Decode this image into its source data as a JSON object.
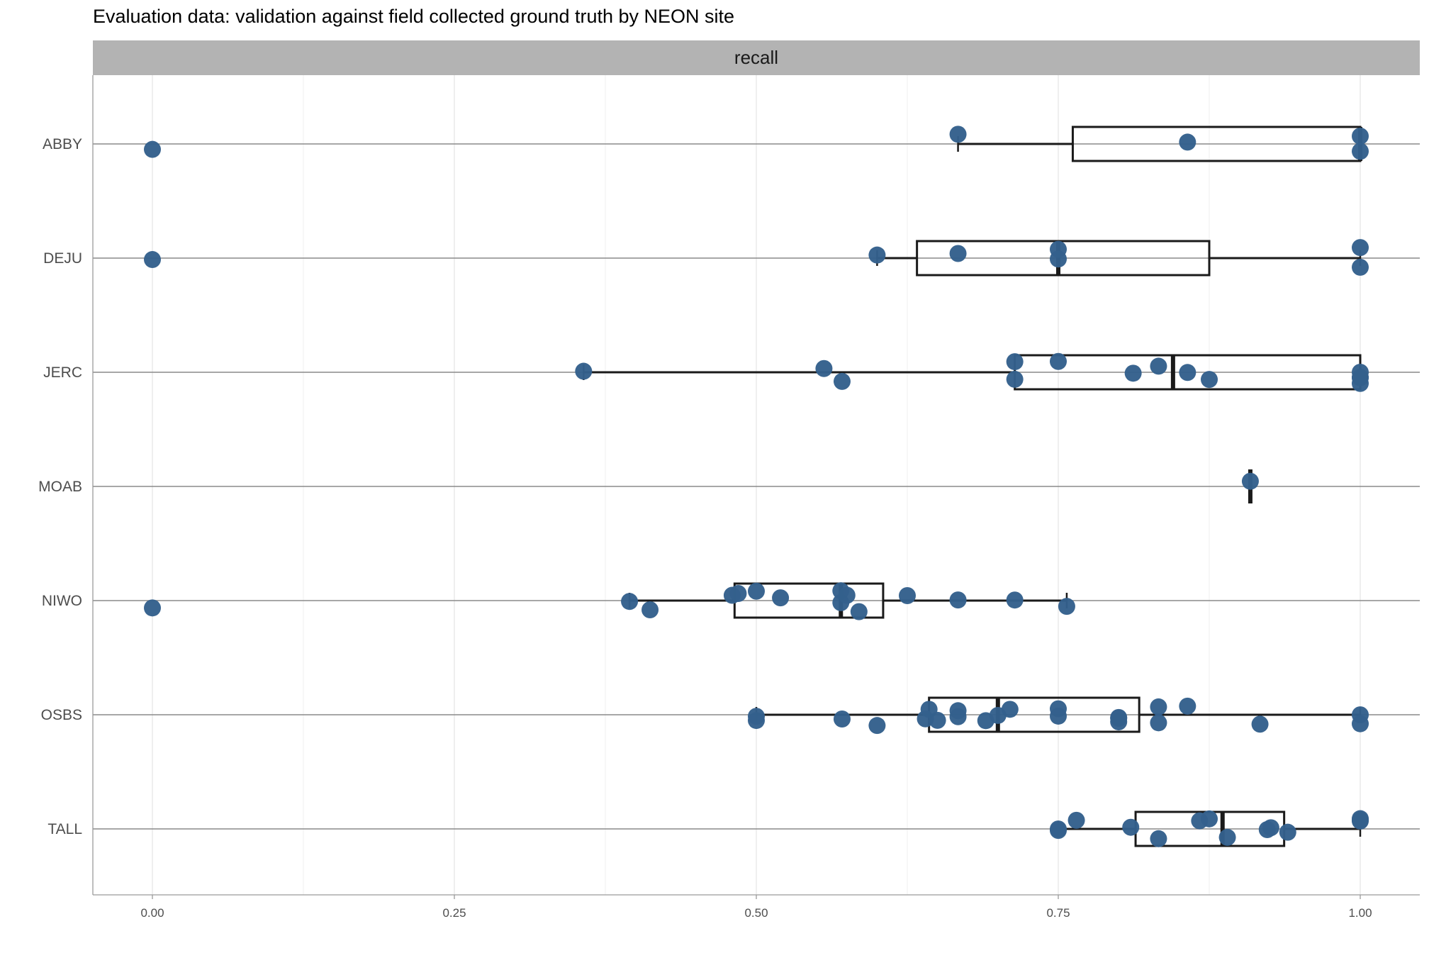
{
  "title": "Evaluation data: validation against field collected ground truth by NEON site",
  "chart_data": {
    "type": "boxplot",
    "facet": "recall",
    "title": "Evaluation data: validation against field collected ground truth by NEON site",
    "xlabel": "",
    "ylabel": "",
    "xlim": [
      -0.05,
      1.05
    ],
    "x_ticks": [
      "0.00",
      "0.25",
      "0.50",
      "0.75",
      "1.00"
    ],
    "categories": [
      "ABBY",
      "DEJU",
      "JERC",
      "MOAB",
      "NIWO",
      "OSBS",
      "TALL"
    ],
    "grid": true,
    "point_color": "#34608c",
    "boxes": [
      {
        "site": "ABBY",
        "whisker_low": 0.667,
        "q1": 0.762,
        "median": 1.0,
        "q3": 1.0,
        "whisker_high": 1.0
      },
      {
        "site": "DEJU",
        "whisker_low": 0.6,
        "q1": 0.633,
        "median": 0.75,
        "q3": 0.875,
        "whisker_high": 1.0
      },
      {
        "site": "JERC",
        "whisker_low": 0.357,
        "q1": 0.714,
        "median": 0.845,
        "q3": 1.0,
        "whisker_high": 1.0
      },
      {
        "site": "MOAB",
        "whisker_low": 0.909,
        "q1": 0.909,
        "median": 0.909,
        "q3": 0.909,
        "whisker_high": 0.909
      },
      {
        "site": "NIWO",
        "whisker_low": 0.395,
        "q1": 0.482,
        "median": 0.57,
        "q3": 0.605,
        "whisker_high": 0.757
      },
      {
        "site": "OSBS",
        "whisker_low": 0.5,
        "q1": 0.643,
        "median": 0.7,
        "q3": 0.817,
        "whisker_high": 1.0
      },
      {
        "site": "TALL",
        "whisker_low": 0.75,
        "q1": 0.814,
        "median": 0.886,
        "q3": 0.937,
        "whisker_high": 1.0
      }
    ],
    "points": [
      {
        "site": "ABBY",
        "values": [
          0.0,
          0.667,
          0.857,
          1.0,
          1.0
        ]
      },
      {
        "site": "DEJU",
        "values": [
          0.0,
          0.6,
          0.667,
          0.75,
          0.75,
          1.0,
          1.0
        ]
      },
      {
        "site": "JERC",
        "values": [
          0.357,
          0.556,
          0.571,
          0.714,
          0.714,
          0.75,
          0.812,
          0.833,
          0.857,
          0.875,
          1.0,
          1.0,
          1.0,
          1.0
        ]
      },
      {
        "site": "MOAB",
        "values": [
          0.909
        ]
      },
      {
        "site": "NIWO",
        "values": [
          0.0,
          0.395,
          0.412,
          0.48,
          0.485,
          0.5,
          0.52,
          0.57,
          0.57,
          0.575,
          0.585,
          0.625,
          0.667,
          0.714,
          0.757
        ]
      },
      {
        "site": "OSBS",
        "values": [
          0.5,
          0.5,
          0.571,
          0.6,
          0.64,
          0.643,
          0.65,
          0.667,
          0.667,
          0.69,
          0.7,
          0.71,
          0.75,
          0.75,
          0.8,
          0.8,
          0.8,
          0.833,
          0.833,
          0.857,
          0.917,
          1.0,
          1.0
        ]
      },
      {
        "site": "TALL",
        "values": [
          0.75,
          0.75,
          0.765,
          0.81,
          0.833,
          0.867,
          0.875,
          0.89,
          0.923,
          0.926,
          0.94,
          1.0,
          1.0,
          1.0
        ]
      }
    ]
  }
}
